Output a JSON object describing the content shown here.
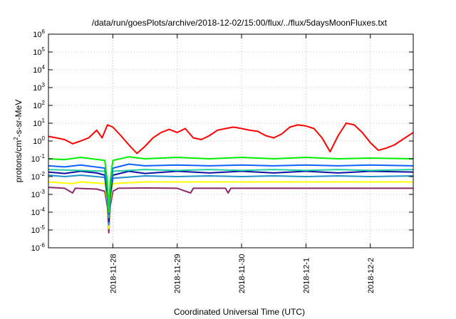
{
  "chart_data": {
    "type": "line",
    "title": "/data/run/goesPlots/archive/2018-12-02/15:00/flux/../flux/5daysMoonFluxes.txt",
    "xlabel": "Coordinated Universal Time (UTC)",
    "ylabel": "protons/cm²-s-sr-MeV",
    "ylabel_parts": {
      "pre": "protons/cm",
      "sup": "2",
      "post": "-s-sr-MeV"
    },
    "y_scale": "log",
    "ylim": [
      1e-06,
      1000000.0
    ],
    "xlim": [
      "2018-11-27T00:00",
      "2018-12-02T16:00"
    ],
    "x_ticks": [
      {
        "t": "2018-11-28T00:00",
        "label": "2018-11-28"
      },
      {
        "t": "2018-11-29T00:00",
        "label": "2018-11-29"
      },
      {
        "t": "2018-11-30T00:00",
        "label": "2018-11-30"
      },
      {
        "t": "2018-12-01T00:00",
        "label": "2018-12-1"
      },
      {
        "t": "2018-12-02T00:00",
        "label": "2018-12-2"
      }
    ],
    "y_ticks": [
      {
        "exp": "-6",
        "v": 1e-06
      },
      {
        "exp": "-5",
        "v": 1e-05
      },
      {
        "exp": "-4",
        "v": 0.0001
      },
      {
        "exp": "-3",
        "v": 0.001
      },
      {
        "exp": "-2",
        "v": 0.01
      },
      {
        "exp": "-1",
        "v": 0.1
      },
      {
        "exp": "0",
        "v": 1
      },
      {
        "exp": "1",
        "v": 10
      },
      {
        "exp": "2",
        "v": 100
      },
      {
        "exp": "3",
        "v": 1000
      },
      {
        "exp": "4",
        "v": 10000
      },
      {
        "exp": "5",
        "v": 100000
      },
      {
        "exp": "6",
        "v": 1000000
      }
    ],
    "y_tick_base": "10",
    "grid": true,
    "legend": "none",
    "series": [
      {
        "color": "#8b2a6b",
        "points": [
          [
            "2018-11-27T00:00",
            0.0025
          ],
          [
            "2018-11-27T06:00",
            0.0022
          ],
          [
            "2018-11-27T09:00",
            0.0012
          ],
          [
            "2018-11-27T10:00",
            0.0022
          ],
          [
            "2018-11-27T18:00",
            0.002
          ],
          [
            "2018-11-27T21:00",
            0.0015
          ],
          [
            "2018-11-27T22:00",
            0.0002
          ],
          [
            "2018-11-27T22:30",
            7e-06
          ],
          [
            "2018-11-27T23:00",
            0.0002
          ],
          [
            "2018-11-28T00:00",
            0.0015
          ],
          [
            "2018-11-28T02:00",
            0.0022
          ],
          [
            "2018-11-28T12:00",
            0.0023
          ],
          [
            "2018-11-29T00:00",
            0.0022
          ],
          [
            "2018-11-29T05:00",
            0.0012
          ],
          [
            "2018-11-29T06:00",
            0.0022
          ],
          [
            "2018-11-29T18:00",
            0.0022
          ],
          [
            "2018-11-29T19:00",
            0.0012
          ],
          [
            "2018-11-29T20:00",
            0.0022
          ],
          [
            "2018-11-30T12:00",
            0.0022
          ],
          [
            "2018-12-01T00:00",
            0.0022
          ],
          [
            "2018-12-01T12:00",
            0.0022
          ],
          [
            "2018-12-02T00:00",
            0.0022
          ],
          [
            "2018-12-02T16:00",
            0.0022
          ]
        ]
      },
      {
        "color": "#ffff00",
        "points": [
          [
            "2018-11-27T00:00",
            0.005
          ],
          [
            "2018-11-27T09:00",
            0.004
          ],
          [
            "2018-11-27T12:00",
            0.005
          ],
          [
            "2018-11-27T21:00",
            0.004
          ],
          [
            "2018-11-27T22:00",
            0.0004
          ],
          [
            "2018-11-27T22:30",
            1.2e-05
          ],
          [
            "2018-11-27T23:00",
            0.0004
          ],
          [
            "2018-11-28T00:00",
            0.004
          ],
          [
            "2018-11-28T12:00",
            0.005
          ],
          [
            "2018-11-29T00:00",
            0.005
          ],
          [
            "2018-11-29T12:00",
            0.005
          ],
          [
            "2018-11-30T00:00",
            0.005
          ],
          [
            "2018-11-30T12:00",
            0.005
          ],
          [
            "2018-12-01T00:00",
            0.005
          ],
          [
            "2018-12-01T12:00",
            0.005
          ],
          [
            "2018-12-02T00:00",
            0.005
          ],
          [
            "2018-12-02T16:00",
            0.005
          ]
        ]
      },
      {
        "color": "#1e90c8",
        "points": [
          [
            "2018-11-27T00:00",
            0.012
          ],
          [
            "2018-11-27T06:00",
            0.01
          ],
          [
            "2018-11-27T12:00",
            0.012
          ],
          [
            "2018-11-27T21:00",
            0.009
          ],
          [
            "2018-11-27T22:00",
            0.0006
          ],
          [
            "2018-11-27T22:30",
            2e-05
          ],
          [
            "2018-11-27T23:00",
            0.0006
          ],
          [
            "2018-11-28T00:00",
            0.008
          ],
          [
            "2018-11-28T12:00",
            0.011
          ],
          [
            "2018-11-29T00:00",
            0.01
          ],
          [
            "2018-11-29T12:00",
            0.011
          ],
          [
            "2018-11-30T00:00",
            0.01
          ],
          [
            "2018-11-30T12:00",
            0.011
          ],
          [
            "2018-12-01T00:00",
            0.01
          ],
          [
            "2018-12-01T12:00",
            0.011
          ],
          [
            "2018-12-02T00:00",
            0.01
          ],
          [
            "2018-12-02T16:00",
            0.011
          ]
        ]
      },
      {
        "color": "#1010a0",
        "points": [
          [
            "2018-11-27T00:00",
            0.018
          ],
          [
            "2018-11-27T06:00",
            0.015
          ],
          [
            "2018-11-27T12:00",
            0.02
          ],
          [
            "2018-11-27T18:00",
            0.016
          ],
          [
            "2018-11-27T21:00",
            0.012
          ],
          [
            "2018-11-27T22:00",
            0.001
          ],
          [
            "2018-11-27T22:30",
            3e-05
          ],
          [
            "2018-11-27T23:00",
            0.001
          ],
          [
            "2018-11-28T00:00",
            0.012
          ],
          [
            "2018-11-28T06:00",
            0.02
          ],
          [
            "2018-11-28T12:00",
            0.015
          ],
          [
            "2018-11-29T00:00",
            0.02
          ],
          [
            "2018-11-29T12:00",
            0.016
          ],
          [
            "2018-11-30T00:00",
            0.02
          ],
          [
            "2018-11-30T12:00",
            0.016
          ],
          [
            "2018-12-01T00:00",
            0.02
          ],
          [
            "2018-12-01T12:00",
            0.016
          ],
          [
            "2018-12-02T00:00",
            0.02
          ],
          [
            "2018-12-02T16:00",
            0.018
          ]
        ]
      },
      {
        "color": "#20d0a0",
        "points": [
          [
            "2018-11-27T00:00",
            0.025
          ],
          [
            "2018-11-27T12:00",
            0.022
          ],
          [
            "2018-11-27T21:00",
            0.02
          ],
          [
            "2018-11-27T22:00",
            0.002
          ],
          [
            "2018-11-27T22:30",
            5e-05
          ],
          [
            "2018-11-27T23:00",
            0.002
          ],
          [
            "2018-11-28T00:00",
            0.02
          ],
          [
            "2018-11-28T12:00",
            0.025
          ],
          [
            "2018-11-29T00:00",
            0.022
          ],
          [
            "2018-11-29T12:00",
            0.025
          ],
          [
            "2018-11-30T00:00",
            0.022
          ],
          [
            "2018-11-30T12:00",
            0.025
          ],
          [
            "2018-12-01T00:00",
            0.022
          ],
          [
            "2018-12-01T12:00",
            0.025
          ],
          [
            "2018-12-02T00:00",
            0.022
          ],
          [
            "2018-12-02T16:00",
            0.025
          ]
        ]
      },
      {
        "color": "#1060ff",
        "points": [
          [
            "2018-11-27T00:00",
            0.04
          ],
          [
            "2018-11-27T06:00",
            0.035
          ],
          [
            "2018-11-27T12:00",
            0.045
          ],
          [
            "2018-11-27T21:00",
            0.03
          ],
          [
            "2018-11-27T22:00",
            0.003
          ],
          [
            "2018-11-27T22:30",
            8e-05
          ],
          [
            "2018-11-27T23:00",
            0.003
          ],
          [
            "2018-11-28T00:00",
            0.03
          ],
          [
            "2018-11-28T06:00",
            0.05
          ],
          [
            "2018-11-28T12:00",
            0.04
          ],
          [
            "2018-11-29T00:00",
            0.045
          ],
          [
            "2018-11-29T12:00",
            0.04
          ],
          [
            "2018-11-30T00:00",
            0.045
          ],
          [
            "2018-11-30T12:00",
            0.04
          ],
          [
            "2018-12-01T00:00",
            0.045
          ],
          [
            "2018-12-01T12:00",
            0.04
          ],
          [
            "2018-12-02T00:00",
            0.045
          ],
          [
            "2018-12-02T16:00",
            0.04
          ]
        ]
      },
      {
        "color": "#00ee00",
        "points": [
          [
            "2018-11-27T00:00",
            0.1
          ],
          [
            "2018-11-27T06:00",
            0.09
          ],
          [
            "2018-11-27T12:00",
            0.12
          ],
          [
            "2018-11-27T21:00",
            0.08
          ],
          [
            "2018-11-27T22:00",
            0.005
          ],
          [
            "2018-11-27T22:30",
            0.0001
          ],
          [
            "2018-11-27T23:00",
            0.005
          ],
          [
            "2018-11-28T00:00",
            0.08
          ],
          [
            "2018-11-28T06:00",
            0.13
          ],
          [
            "2018-11-28T12:00",
            0.1
          ],
          [
            "2018-11-29T00:00",
            0.12
          ],
          [
            "2018-11-29T12:00",
            0.1
          ],
          [
            "2018-11-30T00:00",
            0.12
          ],
          [
            "2018-11-30T12:00",
            0.1
          ],
          [
            "2018-12-01T00:00",
            0.12
          ],
          [
            "2018-12-01T12:00",
            0.1
          ],
          [
            "2018-12-02T00:00",
            0.11
          ],
          [
            "2018-12-02T16:00",
            0.1
          ]
        ]
      },
      {
        "color": "#ff0000",
        "points": [
          [
            "2018-11-27T00:00",
            1.8
          ],
          [
            "2018-11-27T03:00",
            1.5
          ],
          [
            "2018-11-27T06:00",
            1.2
          ],
          [
            "2018-11-27T09:00",
            0.7
          ],
          [
            "2018-11-27T12:00",
            1.0
          ],
          [
            "2018-11-27T15:00",
            1.5
          ],
          [
            "2018-11-27T18:00",
            4.0
          ],
          [
            "2018-11-27T20:00",
            1.5
          ],
          [
            "2018-11-27T22:00",
            8.0
          ],
          [
            "2018-11-28T00:00",
            6.0
          ],
          [
            "2018-11-28T03:00",
            2.0
          ],
          [
            "2018-11-28T06:00",
            0.6
          ],
          [
            "2018-11-28T09:00",
            0.2
          ],
          [
            "2018-11-28T12:00",
            0.5
          ],
          [
            "2018-11-28T15:00",
            1.5
          ],
          [
            "2018-11-28T18:00",
            3.0
          ],
          [
            "2018-11-28T21:00",
            4.5
          ],
          [
            "2018-11-29T00:00",
            3.0
          ],
          [
            "2018-11-29T03:00",
            5.0
          ],
          [
            "2018-11-29T06:00",
            1.5
          ],
          [
            "2018-11-29T09:00",
            1.2
          ],
          [
            "2018-11-29T12:00",
            2.0
          ],
          [
            "2018-11-29T15:00",
            4.0
          ],
          [
            "2018-11-29T18:00",
            5.0
          ],
          [
            "2018-11-29T21:00",
            6.0
          ],
          [
            "2018-11-30T00:00",
            5.0
          ],
          [
            "2018-11-30T03:00",
            4.0
          ],
          [
            "2018-11-30T06:00",
            3.5
          ],
          [
            "2018-11-30T09:00",
            2.0
          ],
          [
            "2018-11-30T12:00",
            1.5
          ],
          [
            "2018-11-30T15:00",
            2.5
          ],
          [
            "2018-11-30T18:00",
            6.0
          ],
          [
            "2018-11-30T21:00",
            8.0
          ],
          [
            "2018-12-01T00:00",
            7.0
          ],
          [
            "2018-12-01T03:00",
            5.0
          ],
          [
            "2018-12-01T06:00",
            1.5
          ],
          [
            "2018-12-01T09:00",
            0.25
          ],
          [
            "2018-12-01T12:00",
            2.0
          ],
          [
            "2018-12-01T15:00",
            10.0
          ],
          [
            "2018-12-01T18:00",
            8.0
          ],
          [
            "2018-12-01T21:00",
            3.0
          ],
          [
            "2018-12-02T00:00",
            0.8
          ],
          [
            "2018-12-02T03:00",
            0.3
          ],
          [
            "2018-12-02T06:00",
            0.4
          ],
          [
            "2018-12-02T09:00",
            0.6
          ],
          [
            "2018-12-02T12:00",
            1.2
          ],
          [
            "2018-12-02T16:00",
            3.0
          ]
        ]
      }
    ]
  }
}
